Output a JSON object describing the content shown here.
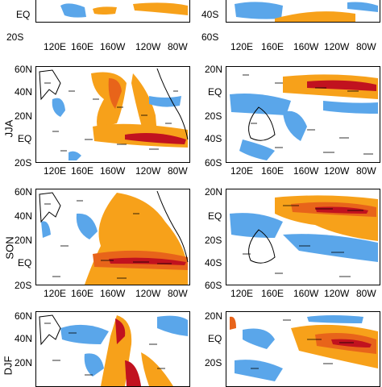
{
  "seasons": [
    "JJA",
    "SON",
    "DJF"
  ],
  "left_lat_labels": [
    "60N",
    "40N",
    "20N",
    "EQ",
    "20S"
  ],
  "right_lat_labels": [
    "20N",
    "EQ",
    "20S",
    "40S",
    "60S"
  ],
  "top_left_lat_labels": [
    "EQ",
    "20S"
  ],
  "top_right_lat_labels": [
    "40S",
    "60S"
  ],
  "lon_labels": [
    "120E",
    "160E",
    "160W",
    "120W",
    "80W"
  ],
  "colors": {
    "warm_light": "#f7a11a",
    "warm_mid": "#e8641a",
    "warm_dark": "#c1121f",
    "cool": "#5aa6ea",
    "vector": "#000000",
    "land": "#ffffff"
  }
}
